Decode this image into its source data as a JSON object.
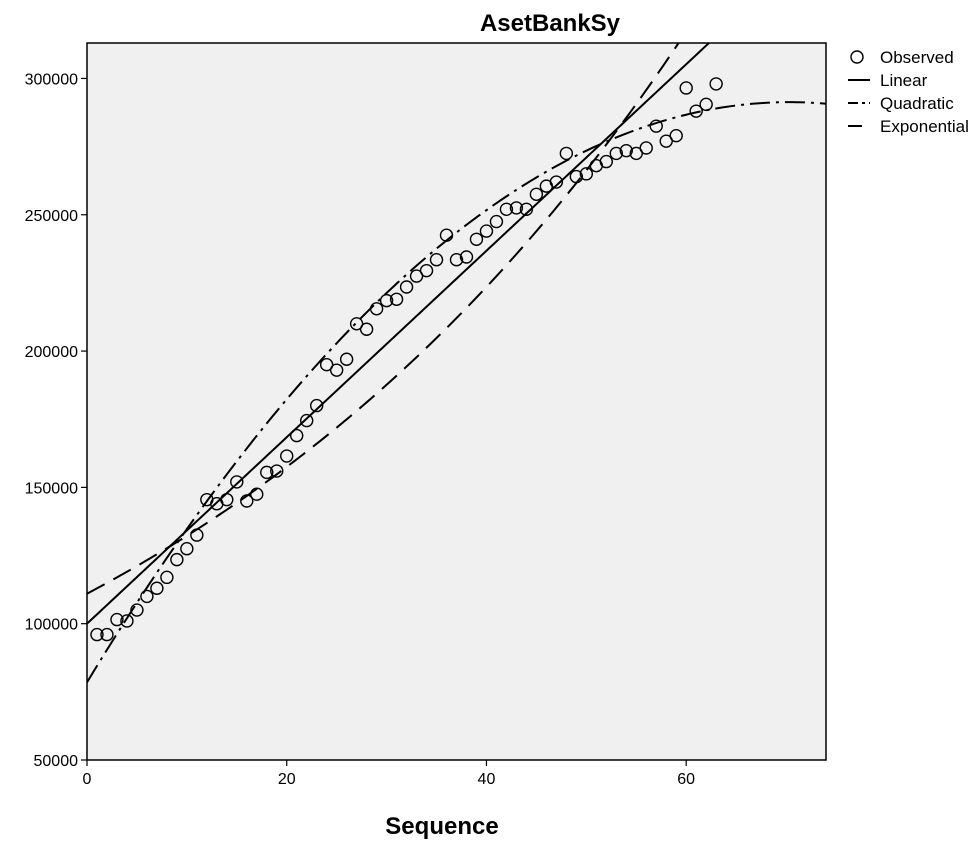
{
  "chart_data": {
    "type": "scatter",
    "title": "AsetBankSy",
    "xlabel": "Sequence",
    "ylabel": "",
    "xlim": [
      0,
      74
    ],
    "ylim": [
      50000,
      313000
    ],
    "x_ticks": [
      0,
      20,
      40,
      60
    ],
    "y_ticks": [
      50000,
      100000,
      150000,
      200000,
      250000,
      300000
    ],
    "legend_position": "right-top",
    "grid": false,
    "colors": {
      "plot_background": "#f0f0f0",
      "page_background": "#ffffff",
      "ink": "#000000"
    },
    "series": [
      {
        "name": "Observed",
        "kind": "markers",
        "marker": "open-circle",
        "x": [
          1,
          2,
          3,
          4,
          5,
          6,
          7,
          8,
          9,
          10,
          11,
          12,
          13,
          14,
          15,
          16,
          17,
          18,
          19,
          20,
          21,
          22,
          23,
          24,
          25,
          26,
          27,
          28,
          29,
          30,
          31,
          32,
          33,
          34,
          35,
          36,
          37,
          38,
          39,
          40,
          41,
          42,
          43,
          44,
          45,
          46,
          47,
          48,
          49,
          50,
          51,
          52,
          53,
          54,
          55,
          56,
          57,
          58,
          59,
          60,
          61,
          62,
          63
        ],
        "y": [
          96000,
          96000,
          101500,
          101000,
          105000,
          110000,
          113000,
          117000,
          123500,
          127500,
          132500,
          145500,
          144000,
          145500,
          152000,
          145000,
          147500,
          155500,
          156000,
          161500,
          169000,
          174500,
          180000,
          195000,
          193000,
          197000,
          210000,
          208000,
          215500,
          218500,
          219000,
          223500,
          227500,
          229500,
          233500,
          242500,
          233500,
          234500,
          241000,
          244000,
          247500,
          252000,
          252500,
          252000,
          257500,
          260500,
          262000,
          272500,
          264000,
          265000,
          268000,
          269500,
          272500,
          273500,
          272500,
          274500,
          282500,
          277000,
          279000,
          296500,
          288000,
          290500,
          298000
        ]
      },
      {
        "name": "Linear",
        "kind": "line",
        "dash": "solid",
        "intercept": 100000,
        "slope": 3420
      },
      {
        "name": "Quadratic",
        "kind": "line",
        "dash": "dash-dot",
        "coefficients": [
          78500,
          6050,
          -43
        ]
      },
      {
        "name": "Exponential",
        "kind": "line",
        "dash": "dash",
        "a": 111000,
        "b": 0.0175
      }
    ]
  }
}
